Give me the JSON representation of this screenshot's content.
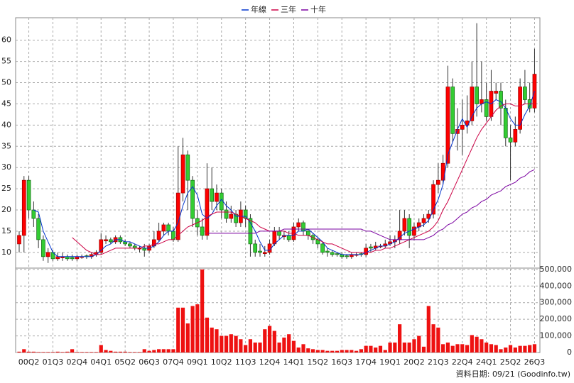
{
  "chart_data": {
    "type": "candlestick",
    "source": "資料日期: 09/21 (Goodinfo.tw)",
    "ylim": [
      6.3,
      65.3
    ],
    "yticks": [
      10,
      15,
      20,
      25,
      30,
      35,
      40,
      45,
      50,
      55,
      60
    ],
    "grid": true,
    "up_color": "#ff0000",
    "down_color": "#33cc33",
    "categories": [
      null,
      null,
      "00Q2",
      null,
      null,
      null,
      null,
      "01Q3",
      null,
      null,
      null,
      null,
      "02Q4",
      null,
      null,
      null,
      null,
      "04Q1",
      null,
      null,
      null,
      null,
      "05Q2",
      null,
      null,
      null,
      null,
      "06Q3",
      null,
      null,
      null,
      null,
      "07Q4",
      null,
      null,
      null,
      null,
      "09Q1",
      null,
      null,
      null,
      null,
      "10Q2",
      null,
      null,
      null,
      null,
      "11Q3",
      null,
      null,
      null,
      null,
      "12Q4",
      null,
      null,
      null,
      null,
      "14Q1",
      null,
      null,
      null,
      null,
      "15Q2",
      null,
      null,
      null,
      null,
      "16Q3",
      null,
      null,
      null,
      null,
      "17Q4",
      null,
      null,
      null,
      null,
      "19Q1",
      null,
      null,
      null,
      null,
      "20Q2",
      null,
      null,
      null,
      null,
      "21Q3",
      null,
      null,
      null,
      null,
      "22Q4",
      null,
      null,
      null,
      null,
      "24Q1",
      null,
      null,
      null,
      null,
      "25Q2",
      null,
      null,
      null,
      null,
      "26Q3"
    ],
    "ohlc": [
      [
        12,
        15,
        10,
        14
      ],
      [
        14,
        28,
        10,
        27
      ],
      [
        27,
        28,
        18,
        20
      ],
      [
        20,
        22,
        16,
        18
      ],
      [
        18,
        19,
        11,
        13
      ],
      [
        13,
        14,
        8,
        9
      ],
      [
        9,
        11,
        7.5,
        10
      ],
      [
        10,
        10.5,
        8,
        8.5
      ],
      [
        8.5,
        10,
        8,
        9
      ],
      [
        8.7,
        10,
        8,
        9
      ],
      [
        9,
        9.5,
        8,
        8.5
      ],
      [
        8.8,
        9.5,
        8,
        8.5
      ],
      [
        8.5,
        9.5,
        8,
        9
      ],
      [
        8.8,
        9.5,
        8.5,
        9
      ],
      [
        9.2,
        9.5,
        8.5,
        9
      ],
      [
        9,
        10,
        8.5,
        9.5
      ],
      [
        9.5,
        10.5,
        9,
        10
      ],
      [
        10,
        14.5,
        9.5,
        13
      ],
      [
        12.7,
        14,
        12,
        13
      ],
      [
        13,
        13.5,
        12,
        12.5
      ],
      [
        12.5,
        14,
        12,
        13.5
      ],
      [
        13.5,
        14,
        12,
        12.5
      ],
      [
        12.5,
        13,
        11.5,
        12
      ],
      [
        12,
        12.5,
        11,
        11.5
      ],
      [
        11.5,
        12,
        10.5,
        11
      ],
      [
        10.8,
        11.5,
        10,
        11
      ],
      [
        11,
        12,
        9,
        10.5
      ],
      [
        10.5,
        12,
        10,
        11.5
      ],
      [
        11.5,
        15,
        11,
        13
      ],
      [
        13,
        17,
        12.5,
        15
      ],
      [
        15,
        17,
        14,
        16.5
      ],
      [
        16.5,
        17,
        14,
        15
      ],
      [
        15,
        16,
        12.5,
        13
      ],
      [
        13,
        35,
        12.5,
        24
      ],
      [
        24,
        37,
        22,
        33
      ],
      [
        33,
        34,
        20,
        27
      ],
      [
        27,
        28,
        16,
        18
      ],
      [
        18,
        20,
        14,
        16
      ],
      [
        16,
        18,
        13,
        14
      ],
      [
        14,
        31,
        13,
        25
      ],
      [
        25,
        30,
        20,
        22
      ],
      [
        22,
        26,
        20,
        24
      ],
      [
        24,
        25,
        18,
        20
      ],
      [
        20,
        22,
        17,
        18
      ],
      [
        18,
        21,
        17,
        19
      ],
      [
        19,
        20,
        16,
        17
      ],
      [
        17,
        22,
        16,
        20
      ],
      [
        20,
        21,
        16,
        18
      ],
      [
        18,
        19,
        9,
        12
      ],
      [
        12,
        13,
        9,
        10
      ],
      [
        10.3,
        12,
        9,
        10
      ],
      [
        9.7,
        11.5,
        9,
        10
      ],
      [
        10,
        13,
        9.5,
        12
      ],
      [
        12,
        16,
        11.5,
        15
      ],
      [
        15,
        16,
        13,
        14
      ],
      [
        13.7,
        15,
        13,
        14
      ],
      [
        14,
        15,
        12.5,
        13
      ],
      [
        13,
        17,
        12.5,
        16
      ],
      [
        16,
        18,
        15,
        17
      ],
      [
        17,
        17.5,
        14,
        15
      ],
      [
        15,
        15.5,
        13,
        14
      ],
      [
        14,
        14.5,
        12,
        13
      ],
      [
        13,
        13.5,
        11,
        12
      ],
      [
        12,
        12.5,
        9.5,
        10
      ],
      [
        10.3,
        11,
        9,
        10
      ],
      [
        10,
        10.5,
        9,
        9.5
      ],
      [
        9.7,
        10,
        9,
        9.5
      ],
      [
        9.5,
        10,
        8.5,
        9
      ],
      [
        9.2,
        9.5,
        8.5,
        9
      ],
      [
        9,
        10,
        8.5,
        9.5
      ],
      [
        9.3,
        10,
        9,
        9.5
      ],
      [
        9.7,
        10,
        9,
        9.5
      ],
      [
        9.5,
        12,
        9,
        11
      ],
      [
        11.3,
        12,
        10,
        11
      ],
      [
        11,
        12.5,
        10.5,
        11.5
      ],
      [
        11.3,
        12,
        11,
        11.5
      ],
      [
        11.5,
        13,
        11,
        12
      ],
      [
        12,
        14,
        11.5,
        12.5
      ],
      [
        12.5,
        14,
        11,
        13
      ],
      [
        13,
        20,
        12,
        15
      ],
      [
        15,
        20,
        14,
        18
      ],
      [
        18,
        19,
        11,
        14
      ],
      [
        14,
        17,
        13,
        16
      ],
      [
        16,
        18,
        15,
        17
      ],
      [
        17,
        19,
        16,
        18
      ],
      [
        18,
        20,
        17,
        19
      ],
      [
        19,
        27,
        18,
        26
      ],
      [
        26,
        31,
        24,
        27
      ],
      [
        27,
        33,
        26,
        31
      ],
      [
        31,
        54,
        30,
        49
      ],
      [
        49,
        51,
        36,
        38
      ],
      [
        38,
        44,
        34,
        39
      ],
      [
        39,
        46,
        33,
        40
      ],
      [
        40,
        47,
        38,
        41
      ],
      [
        41,
        55,
        40,
        49
      ],
      [
        49,
        64,
        42,
        45
      ],
      [
        45,
        55,
        43,
        46
      ],
      [
        46,
        50,
        41,
        42
      ],
      [
        42,
        53,
        41,
        48
      ],
      [
        47.5,
        50,
        46,
        48
      ],
      [
        48,
        50,
        40,
        44
      ],
      [
        44,
        46,
        35,
        37
      ],
      [
        37,
        40,
        27,
        36
      ],
      [
        36,
        42,
        35,
        39
      ],
      [
        39,
        51,
        38,
        49
      ],
      [
        49,
        53,
        45,
        46
      ],
      [
        46,
        50,
        43,
        44
      ],
      [
        44,
        58,
        43,
        52
      ]
    ],
    "series": [
      {
        "name": "年線",
        "color": "#0033cc",
        "values": [
          null,
          null,
          null,
          20,
          19.5,
          15,
          12.5,
          10,
          9,
          9,
          9,
          9,
          9,
          9,
          9,
          9,
          9.5,
          10.5,
          11.5,
          12,
          13,
          13,
          12.5,
          12.5,
          12,
          11.5,
          11,
          11,
          11.5,
          12.5,
          14,
          15,
          15,
          17,
          21,
          24,
          25.5,
          23.5,
          19,
          18,
          19,
          21,
          22.5,
          21,
          20,
          18.5,
          18.5,
          18.5,
          17,
          15,
          12.5,
          10.5,
          10.5,
          12,
          13,
          14,
          14,
          14,
          15,
          15,
          15.5,
          14.5,
          13.5,
          12.5,
          11,
          10.5,
          10,
          9.5,
          9.5,
          9.5,
          9.5,
          9.5,
          10,
          10.5,
          11,
          11.5,
          11.5,
          12,
          12.5,
          13.5,
          14.5,
          15,
          15.5,
          16,
          16.5,
          17.5,
          20,
          22.5,
          26,
          33,
          36,
          39,
          41.5,
          39.5,
          42,
          44,
          45,
          45.5,
          45,
          46,
          45.5,
          44,
          41.5,
          40,
          40,
          42.5,
          44.5,
          48
        ]
      },
      {
        "name": "三年",
        "color": "#cc0044",
        "values": [
          null,
          null,
          null,
          null,
          null,
          null,
          null,
          null,
          null,
          null,
          null,
          13.5,
          12.5,
          11.5,
          10.5,
          10,
          9.5,
          9.5,
          10,
          10.5,
          11,
          11,
          11,
          11,
          11,
          11,
          11.5,
          11.5,
          12,
          12,
          12.5,
          13,
          13,
          14,
          15,
          16,
          16.5,
          17,
          17.5,
          18.5,
          19,
          19.5,
          19.5,
          19.5,
          19.5,
          19,
          18.5,
          18,
          17.5,
          17,
          16,
          15.5,
          15,
          15,
          15,
          15,
          14.5,
          14.5,
          14,
          14,
          14,
          13.5,
          13,
          12.5,
          12,
          12,
          11.5,
          11,
          10.5,
          10,
          10,
          10,
          10,
          10,
          10.5,
          10.5,
          11,
          11,
          11.5,
          12,
          12.5,
          13,
          13.5,
          14,
          14.5,
          15,
          16,
          17.5,
          20,
          22,
          24.5,
          27,
          29.5,
          32,
          34.5,
          37,
          39,
          40.5,
          42,
          43.5,
          44.5,
          45,
          45,
          44.5,
          44.5,
          45,
          45,
          45
        ]
      },
      {
        "name": "十年",
        "color": "#7a00a0",
        "values": [
          null,
          null,
          null,
          null,
          null,
          null,
          null,
          null,
          null,
          null,
          null,
          null,
          null,
          null,
          null,
          null,
          null,
          null,
          null,
          null,
          null,
          null,
          null,
          null,
          null,
          null,
          null,
          null,
          null,
          null,
          null,
          null,
          null,
          null,
          null,
          null,
          null,
          null,
          null,
          14.5,
          14.5,
          14.5,
          14.5,
          14.5,
          14.5,
          14.5,
          14.5,
          14.5,
          14.5,
          14.5,
          15,
          15,
          15,
          15,
          15,
          15.5,
          15.5,
          15.5,
          15.5,
          15.5,
          15.5,
          15.5,
          15.5,
          15.5,
          15.5,
          15.5,
          15.5,
          15.5,
          15.5,
          15.5,
          15.5,
          15.5,
          15,
          15,
          14.5,
          14,
          13.5,
          13,
          13,
          13,
          13,
          13,
          13,
          13,
          13,
          13.5,
          14,
          15,
          15.5,
          16.5,
          17,
          18,
          19,
          19.5,
          20.5,
          21,
          22,
          22.5,
          23.5,
          24,
          24.5,
          25.5,
          26,
          26.5,
          27.5,
          28,
          29,
          29.5
        ]
      }
    ],
    "volume": {
      "color": "#ee1111",
      "ylim": [
        0,
        508000
      ],
      "yticks": [
        0,
        {
          "value": 100000,
          "label": "100,000"
        },
        {
          "value": 200000,
          "label": "200,000"
        },
        {
          "value": 300000,
          "label": "300,000"
        },
        {
          "value": 400000,
          "label": "400,000"
        },
        {
          "value": 500000,
          "label": "500,000"
        }
      ],
      "values": [
        5000,
        20000,
        5000,
        5000,
        3000,
        3000,
        3000,
        3000,
        5000,
        3000,
        5000,
        20000,
        3000,
        3000,
        3000,
        3000,
        3000,
        45000,
        15000,
        10000,
        5000,
        5000,
        5000,
        3000,
        3000,
        3000,
        20000,
        10000,
        15000,
        20000,
        20000,
        20000,
        20000,
        270000,
        270000,
        175000,
        280000,
        290000,
        500000,
        210000,
        150000,
        140000,
        100000,
        100000,
        110000,
        100000,
        80000,
        45000,
        80000,
        60000,
        60000,
        140000,
        160000,
        130000,
        60000,
        90000,
        110000,
        70000,
        30000,
        50000,
        25000,
        20000,
        15000,
        15000,
        10000,
        10000,
        10000,
        15000,
        15000,
        15000,
        10000,
        20000,
        40000,
        40000,
        30000,
        40000,
        15000,
        60000,
        60000,
        170000,
        60000,
        60000,
        80000,
        100000,
        35000,
        280000,
        170000,
        150000,
        50000,
        60000,
        40000,
        50000,
        50000,
        45000,
        105000,
        95000,
        80000,
        60000,
        50000,
        45000,
        20000,
        30000,
        45000,
        30000,
        40000,
        40000,
        45000,
        50000
      ]
    }
  }
}
